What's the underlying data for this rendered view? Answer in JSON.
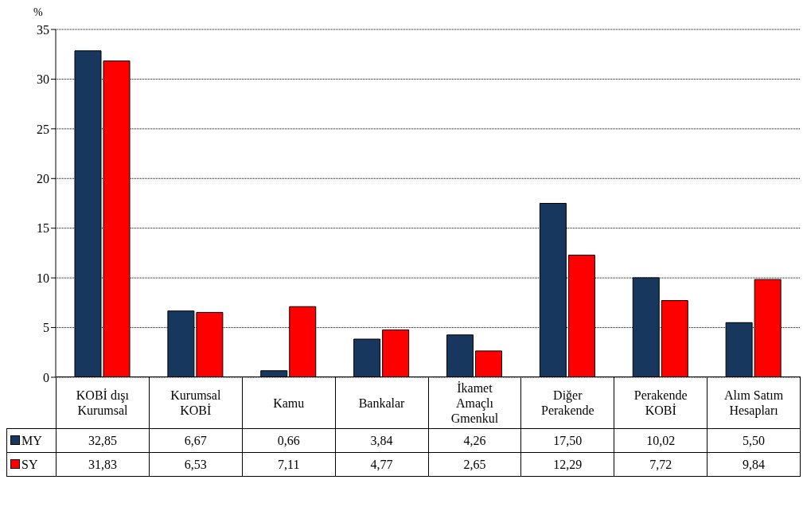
{
  "chart_data": {
    "type": "bar",
    "ylabel": "%",
    "categories": [
      "KOBİ dışı\nKurumsal",
      "Kurumsal\nKOBİ",
      "Kamu",
      "Bankalar",
      "İkamet\nAmaçlı\nGmenkul",
      "Diğer\nPerakende",
      "Perakende\nKOBİ",
      "Alım Satım\nHesapları"
    ],
    "series": [
      {
        "name": "MY",
        "color": "#17375e",
        "values": [
          32.85,
          6.67,
          0.66,
          3.84,
          4.26,
          17.5,
          10.02,
          5.5
        ],
        "value_labels": [
          "32,85",
          "6,67",
          "0,66",
          "3,84",
          "4,26",
          "17,50",
          "10,02",
          "5,50"
        ]
      },
      {
        "name": "SY",
        "color": "#ff0000",
        "values": [
          31.83,
          6.53,
          7.11,
          4.77,
          2.65,
          12.29,
          7.72,
          9.84
        ],
        "value_labels": [
          "31,83",
          "6,53",
          "7,11",
          "4,77",
          "2,65",
          "12,29",
          "7,72",
          "9,84"
        ]
      }
    ],
    "ylim": [
      0,
      35
    ],
    "yticks": [
      0,
      5,
      10,
      15,
      20,
      25,
      30,
      35
    ],
    "grid": "y",
    "legend": "bottom"
  }
}
